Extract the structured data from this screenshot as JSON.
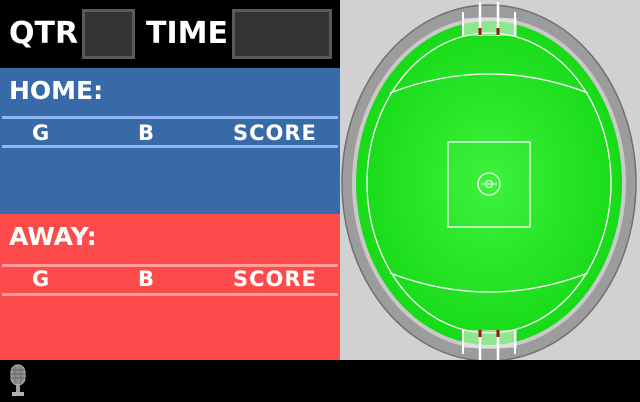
{
  "scoreboard": {
    "quarter_label": "QTR",
    "time_label": "TIME",
    "quarter_value": "",
    "time_value": ""
  },
  "home": {
    "title": "HOME:",
    "columns": [
      "G",
      "B",
      "SCORE"
    ]
  },
  "away": {
    "title": "AWAY:",
    "columns": [
      "G",
      "B",
      "SCORE"
    ]
  },
  "ground": {
    "icon": "afl-oval-field-icon"
  },
  "footer": {
    "icon": "microphone-icon"
  },
  "colors": {
    "home_panel": "#386aa7",
    "away_panel": "#fd4b4b",
    "field_green": "#1fe11f",
    "ground_background": "#d1d1d1"
  }
}
